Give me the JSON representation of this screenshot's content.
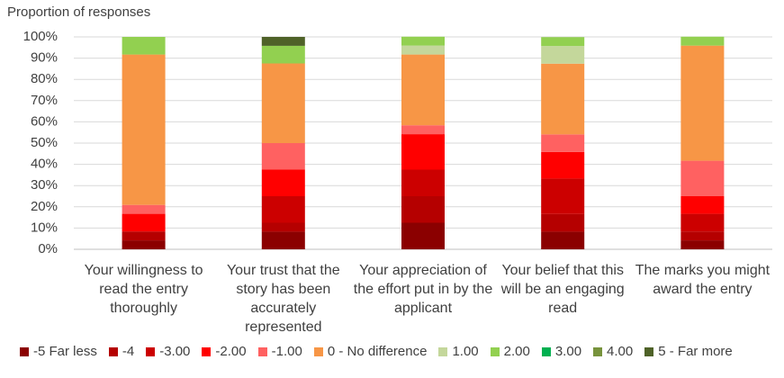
{
  "chart_data": {
    "type": "stacked_bar",
    "title": "Proportion of responses",
    "categories": [
      "Your willingness to read the entry thoroughly",
      "Your trust that the story has been accurately represented",
      "Your appreciation of the effort put in by the applicant",
      "Your belief that this will be an engaging read",
      "The marks you might award the entry"
    ],
    "series": [
      {
        "name": "-5 Far less",
        "color": "#8b0000",
        "values": [
          4.2,
          8.3,
          12.5,
          8.3,
          4.2
        ]
      },
      {
        "name": "-4",
        "color": "#b50000",
        "values": [
          4.2,
          4.2,
          12.5,
          8.3,
          4.2
        ]
      },
      {
        "name": "-3.00",
        "color": "#cc0000",
        "values": [
          0,
          12.5,
          12.5,
          16.7,
          8.3
        ]
      },
      {
        "name": "-2.00",
        "color": "#ff0000",
        "values": [
          8.3,
          12.5,
          16.7,
          12.5,
          8.3
        ]
      },
      {
        "name": "-1.00",
        "color": "#ff6161",
        "values": [
          4.2,
          12.5,
          4.2,
          8.3,
          16.7
        ]
      },
      {
        "name": "0 - No difference",
        "color": "#f79646",
        "values": [
          70.8,
          37.5,
          33.3,
          33.3,
          54.2
        ]
      },
      {
        "name": "1.00",
        "color": "#c4d79b",
        "values": [
          0,
          0,
          4.2,
          8.3,
          0
        ]
      },
      {
        "name": "2.00",
        "color": "#92d050",
        "values": [
          8.3,
          8.3,
          4.2,
          4.2,
          4.2
        ]
      },
      {
        "name": "3.00",
        "color": "#00b050",
        "values": [
          0,
          0,
          0,
          0,
          0
        ]
      },
      {
        "name": "4.00",
        "color": "#77933c",
        "values": [
          0,
          0,
          0,
          0,
          0
        ]
      },
      {
        "name": "5 - Far more",
        "color": "#4f6228",
        "values": [
          0,
          4.2,
          0,
          0,
          0
        ]
      }
    ],
    "ylim": [
      0,
      100
    ],
    "yticks": [
      {
        "value": 0,
        "label": "0%"
      },
      {
        "value": 10,
        "label": "10%"
      },
      {
        "value": 20,
        "label": "20%"
      },
      {
        "value": 30,
        "label": "30%"
      },
      {
        "value": 40,
        "label": "40%"
      },
      {
        "value": 50,
        "label": "50%"
      },
      {
        "value": 60,
        "label": "60%"
      },
      {
        "value": 70,
        "label": "70%"
      },
      {
        "value": 80,
        "label": "80%"
      },
      {
        "value": 90,
        "label": "90%"
      },
      {
        "value": 100,
        "label": "100%"
      }
    ],
    "grid": true
  }
}
